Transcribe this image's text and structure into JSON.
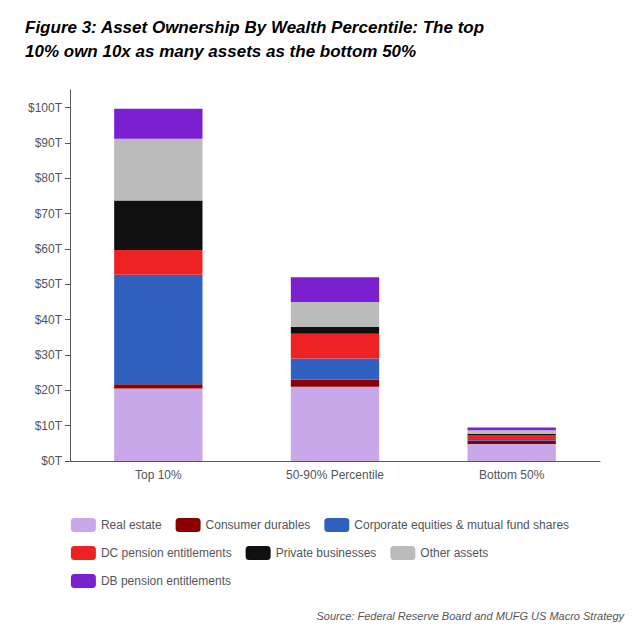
{
  "chart_data": {
    "type": "bar",
    "title": "Figure 3: Asset Ownership By Wealth Percentile: The top\n10% own 10x as many assets as the bottom 50%",
    "annotations": [
      "Source: Federal Reserve Board and MUFG US Macro Strategy"
    ],
    "categories": [
      "Top 10%",
      "50-90% Percentile",
      "Bottom 50%"
    ],
    "series": [
      {
        "name": "Real estate",
        "color": "#C8A8E8",
        "values": [
          20.5,
          21.0,
          4.8
        ]
      },
      {
        "name": "Consumer durables",
        "color": "#8B0000",
        "values": [
          1.2,
          2.0,
          0.9
        ]
      },
      {
        "name": "Corporate equities & mutual fund shares",
        "color": "#3060C0",
        "values": [
          31.0,
          6.0,
          0.5
        ]
      },
      {
        "name": "DC pension entitlements",
        "color": "#EE2222",
        "values": [
          7.0,
          7.0,
          1.0
        ]
      },
      {
        "name": "Private businesses",
        "color": "#101010",
        "values": [
          14.0,
          2.0,
          0.5
        ]
      },
      {
        "name": "Other assets",
        "color": "#BBBBBB",
        "values": [
          17.5,
          7.0,
          1.0
        ]
      },
      {
        "name": "DB pension entitlements",
        "color": "#7B20D0",
        "values": [
          8.5,
          7.0,
          0.8
        ]
      }
    ],
    "stacked": true,
    "ylim": [
      0,
      105
    ],
    "yticks": [
      {
        "value": 0,
        "label": "$0T"
      },
      {
        "value": 10,
        "label": "$10T"
      },
      {
        "value": 20,
        "label": "$20T"
      },
      {
        "value": 30,
        "label": "$30T"
      },
      {
        "value": 40,
        "label": "$40T"
      },
      {
        "value": 50,
        "label": "$50T"
      },
      {
        "value": 60,
        "label": "$60T"
      },
      {
        "value": 70,
        "label": "$70T"
      },
      {
        "value": 80,
        "label": "$80T"
      },
      {
        "value": 90,
        "label": "$90T"
      },
      {
        "value": 100,
        "label": "$100T"
      }
    ],
    "grid": false,
    "legend": "bottom"
  }
}
